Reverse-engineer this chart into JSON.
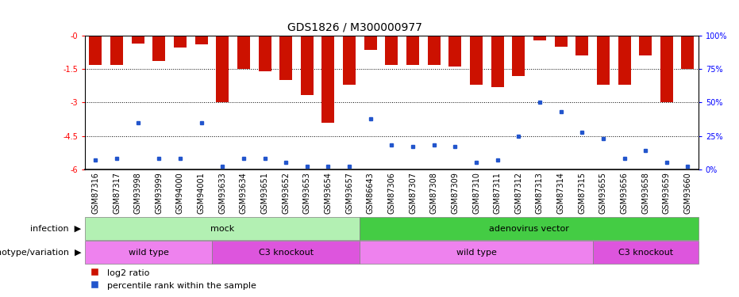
{
  "title": "GDS1826 / M300000977",
  "samples": [
    "GSM87316",
    "GSM87317",
    "GSM93998",
    "GSM93999",
    "GSM94000",
    "GSM94001",
    "GSM93633",
    "GSM93634",
    "GSM93651",
    "GSM93652",
    "GSM93653",
    "GSM93654",
    "GSM93657",
    "GSM86643",
    "GSM87306",
    "GSM87307",
    "GSM87308",
    "GSM87309",
    "GSM87310",
    "GSM87311",
    "GSM87312",
    "GSM87313",
    "GSM87314",
    "GSM87315",
    "GSM93655",
    "GSM93656",
    "GSM93658",
    "GSM93659",
    "GSM93660"
  ],
  "log2_ratio": [
    -1.3,
    -1.3,
    -0.35,
    -1.15,
    -0.55,
    -0.38,
    -3.0,
    -1.5,
    -1.6,
    -2.0,
    -2.65,
    -3.9,
    -2.2,
    -0.65,
    -1.3,
    -1.3,
    -1.3,
    -1.4,
    -2.2,
    -2.3,
    -1.8,
    -0.2,
    -0.5,
    -0.9,
    -2.2,
    -2.2,
    -0.9,
    -3.0,
    -1.5
  ],
  "percentile": [
    7,
    8,
    35,
    8,
    8,
    35,
    2,
    8,
    8,
    5,
    2,
    2,
    2,
    38,
    18,
    17,
    18,
    17,
    5,
    7,
    25,
    50,
    43,
    28,
    23,
    8,
    14,
    5,
    2
  ],
  "infection_groups": [
    {
      "label": "mock",
      "start": 0,
      "end": 13,
      "color": "#b3f0b3"
    },
    {
      "label": "adenovirus vector",
      "start": 13,
      "end": 29,
      "color": "#44cc44"
    }
  ],
  "genotype_groups": [
    {
      "label": "wild type",
      "start": 0,
      "end": 6,
      "color": "#ee82ee"
    },
    {
      "label": "C3 knockout",
      "start": 6,
      "end": 13,
      "color": "#dd55dd"
    },
    {
      "label": "wild type",
      "start": 13,
      "end": 24,
      "color": "#ee82ee"
    },
    {
      "label": "C3 knockout",
      "start": 24,
      "end": 29,
      "color": "#dd55dd"
    }
  ],
  "ylim": [
    -6,
    0
  ],
  "yticks": [
    0,
    -1.5,
    -3.0,
    -4.5,
    -6.0
  ],
  "right_yticks": [
    100,
    75,
    50,
    25,
    0
  ],
  "bar_color": "#cc1100",
  "dot_color": "#2255cc",
  "title_fontsize": 10,
  "tick_fontsize": 7,
  "label_fontsize": 8,
  "annotation_fontsize": 8
}
